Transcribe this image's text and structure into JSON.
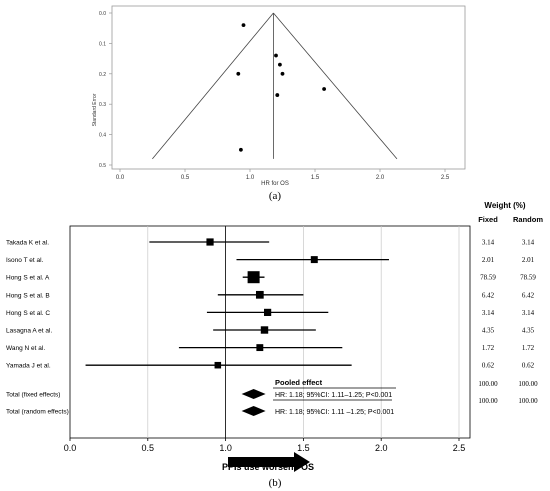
{
  "funnel": {
    "panel_label": "(a)",
    "xlabel": "HR for OS",
    "ylabel": "Standard Error",
    "x_ticks": [
      "0.0",
      "0.5",
      "1.0",
      "1.5",
      "2.0",
      "2.5"
    ],
    "y_ticks": [
      "0.0",
      "0.1",
      "0.2",
      "0.3",
      "0.4",
      "0.5"
    ]
  },
  "forest": {
    "panel_label": "(b)",
    "header_weight": "Weight (%)",
    "header_fixed": "Fixed",
    "header_random": "Random",
    "x_ticks": [
      "0.0",
      "0.5",
      "1.0",
      "1.5",
      "2.0",
      "2.5"
    ],
    "pooled_title": "Pooled effect",
    "fixed_text": "HR: 1.18; 95%CI: 1.11–1.25; P<0.001",
    "random_text": "HR: 1.18; 95%CI: 1.11 –1.25; P<0.001",
    "arrow_label": "PPIs use worsens OS"
  },
  "chart_data": [
    {
      "type": "scatter",
      "xlabel": "HR for OS",
      "ylabel": "Standard Error",
      "xlim": [
        0.0,
        2.5
      ],
      "ylim": [
        0.0,
        0.5
      ],
      "y_inverted": true,
      "pooled_estimate": 1.18,
      "points": [
        {
          "x": 0.95,
          "y": 0.04
        },
        {
          "x": 1.2,
          "y": 0.14
        },
        {
          "x": 1.23,
          "y": 0.17
        },
        {
          "x": 1.25,
          "y": 0.2
        },
        {
          "x": 0.91,
          "y": 0.2
        },
        {
          "x": 1.57,
          "y": 0.25
        },
        {
          "x": 1.21,
          "y": 0.27
        },
        {
          "x": 0.93,
          "y": 0.45
        }
      ]
    },
    {
      "type": "forest",
      "xlim": [
        0.0,
        2.5
      ],
      "studies": [
        {
          "name": "Takada K et al.",
          "hr": 0.9,
          "lo": 0.51,
          "hi": 1.28,
          "fixed": "3.14",
          "random": "3.14"
        },
        {
          "name": "Isono T et al.",
          "hr": 1.57,
          "lo": 1.07,
          "hi": 2.05,
          "fixed": "2.01",
          "random": "2.01"
        },
        {
          "name": "Hong S et al. A",
          "hr": 1.18,
          "lo": 1.11,
          "hi": 1.25,
          "fixed": "78.59",
          "random": "78.59"
        },
        {
          "name": "Hong S et al. B",
          "hr": 1.22,
          "lo": 0.95,
          "hi": 1.5,
          "fixed": "6.42",
          "random": "6.42"
        },
        {
          "name": "Hong S et al. C",
          "hr": 1.27,
          "lo": 0.88,
          "hi": 1.66,
          "fixed": "3.14",
          "random": "3.14"
        },
        {
          "name": "Lasagna A et al.",
          "hr": 1.25,
          "lo": 0.92,
          "hi": 1.58,
          "fixed": "4.35",
          "random": "4.35"
        },
        {
          "name": "Wang N et al.",
          "hr": 1.22,
          "lo": 0.7,
          "hi": 1.75,
          "fixed": "1.72",
          "random": "1.72"
        },
        {
          "name": "Yamada J et al.",
          "hr": 0.95,
          "lo": 0.1,
          "hi": 1.81,
          "fixed": "0.62",
          "random": "0.62"
        }
      ],
      "pooled": [
        {
          "name": "Total (fixed effects)",
          "hr": 1.18,
          "lo": 1.11,
          "hi": 1.25,
          "fixed": "100.00",
          "random": "100.00"
        },
        {
          "name": "Total (random effects)",
          "hr": 1.18,
          "lo": 1.11,
          "hi": 1.25,
          "fixed": "100.00",
          "random": "100.00"
        }
      ]
    }
  ]
}
